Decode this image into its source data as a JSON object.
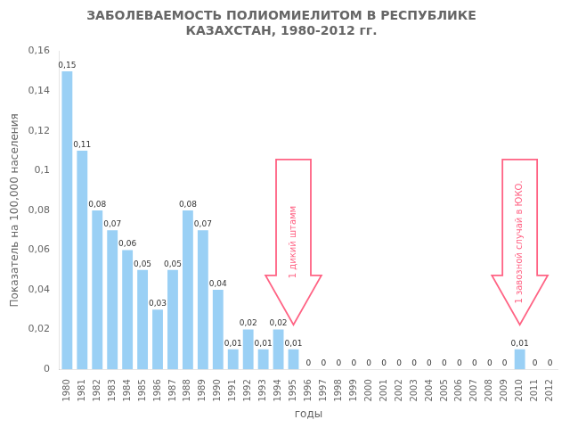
{
  "chart_data": {
    "type": "bar",
    "title": "ЗАБОЛЕВАЕМОСТЬ ПОЛИОМИЕЛИТОМ В РЕСПУБЛИКЕ\nКАЗАХСТАН, 1980-2012 гг.",
    "xlabel": "годы",
    "ylabel": "Показатель на 100,000 населения",
    "categories": [
      "1980",
      "1981",
      "1982",
      "1983",
      "1984",
      "1985",
      "1986",
      "1987",
      "1988",
      "1989",
      "1990",
      "1991",
      "1992",
      "1993",
      "1994",
      "1995",
      "1996",
      "1997",
      "1998",
      "1999",
      "2000",
      "2001",
      "2002",
      "2003",
      "2004",
      "2005",
      "2006",
      "2007",
      "2008",
      "2009",
      "2010",
      "2011",
      "2012"
    ],
    "values": [
      0.15,
      0.11,
      0.08,
      0.07,
      0.06,
      0.05,
      0.03,
      0.05,
      0.08,
      0.07,
      0.04,
      0.01,
      0.02,
      0.01,
      0.02,
      0.01,
      0,
      0,
      0,
      0,
      0,
      0,
      0,
      0,
      0,
      0,
      0,
      0,
      0,
      0,
      0.01,
      0,
      0
    ],
    "value_labels": [
      "0,15",
      "0,11",
      "0,08",
      "0,07",
      "0,06",
      "0,05",
      "0,03",
      "0,05",
      "0,08",
      "0,07",
      "0,04",
      "0,01",
      "0,02",
      "0,01",
      "0,02",
      "0,01",
      "0",
      "0",
      "0",
      "0",
      "0",
      "0",
      "0",
      "0",
      "0",
      "0",
      "0",
      "0",
      "0",
      "0",
      "0,01",
      "0",
      "0"
    ],
    "data_labels": true,
    "ylim": [
      0,
      0.16
    ],
    "yticks": [
      0,
      {
        "value": 0.02,
        "label": "0,02"
      },
      {
        "value": 0.04,
        "label": "0,04"
      },
      {
        "value": 0.06,
        "label": "0,06"
      },
      {
        "value": 0.08,
        "label": "0,08"
      },
      {
        "value": 0.1,
        "label": "0,1"
      },
      {
        "value": 0.12,
        "label": "0,12"
      },
      {
        "value": 0.14,
        "label": "0,14"
      },
      {
        "value": 0.16,
        "label": "0,16"
      }
    ],
    "grid": false,
    "annotations": [
      {
        "text": "1 дикий штамм",
        "x": "1995"
      },
      {
        "text": "1 завозной случай в ЮКО.",
        "x": "2010"
      }
    ]
  }
}
